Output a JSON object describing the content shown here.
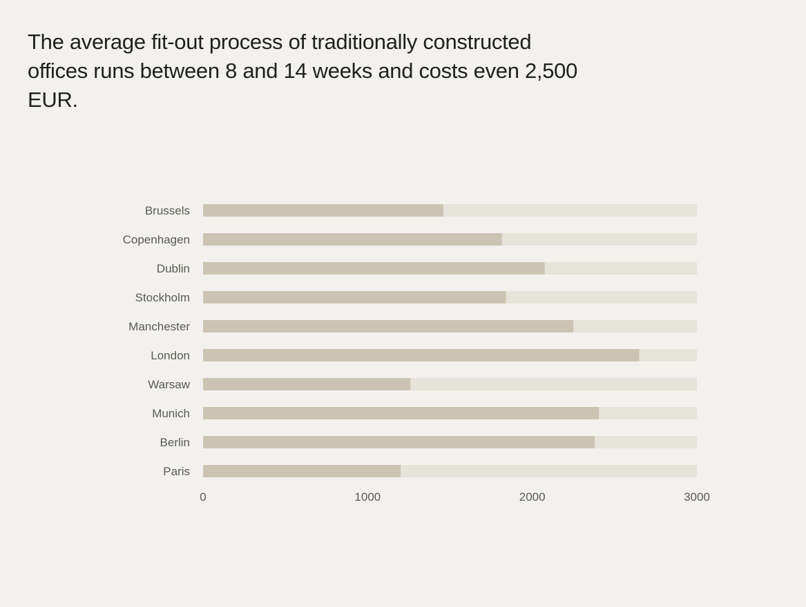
{
  "headline": "The average fit-out process of traditionally constructed offices runs between 8 and 14 weeks and costs even 2,500 EUR.",
  "colors": {
    "background": "#f2f1ed",
    "bar": "#ccc4b2",
    "track": "#e6e3db",
    "text": "#1f1f1f",
    "label": "#5a5a55"
  },
  "chart_data": {
    "type": "bar",
    "orientation": "horizontal",
    "title": "",
    "xlabel": "",
    "ylabel": "",
    "xlim": [
      0,
      3000
    ],
    "ticks": [
      "0",
      "1000",
      "2000",
      "3000"
    ],
    "grid": false,
    "categories": [
      "Brussels",
      "Copenhagen",
      "Dublin",
      "Stockholm",
      "Manchester",
      "London",
      "Warsaw",
      "Munich",
      "Berlin",
      "Paris"
    ],
    "values": [
      1460,
      1815,
      2075,
      1840,
      2250,
      2650,
      1260,
      2405,
      2380,
      1200
    ]
  }
}
